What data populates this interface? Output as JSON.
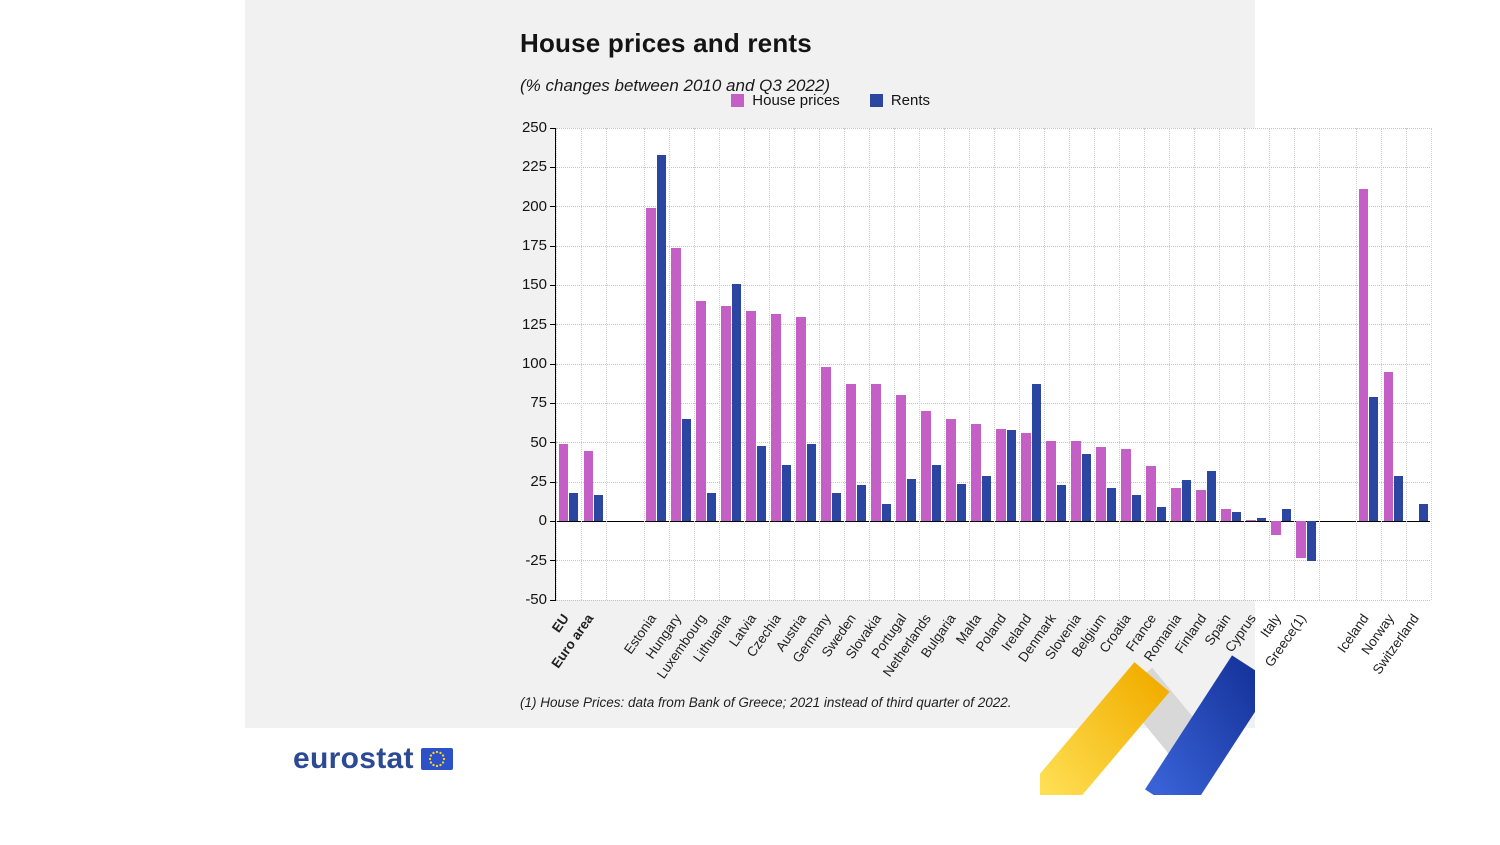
{
  "page": {
    "title": "House prices and rents",
    "subtitle": "(% changes between 2010 and Q3 2022)",
    "footnote": "(1) House Prices: data from Bank of Greece; 2021 instead of third quarter of 2022.",
    "brand": {
      "logo_text": "eurostat"
    }
  },
  "legend": [
    {
      "label": "House prices",
      "color": "#c45fc6"
    },
    {
      "label": "Rents",
      "color": "#2a46a0"
    }
  ],
  "chart_data": {
    "type": "bar",
    "title": "House prices and rents",
    "subtitle": "(% changes between 2010 and Q3 2022)",
    "unit": "% change between 2010 and Q3 2022",
    "ylim": [
      -50,
      250
    ],
    "yticks": [
      250,
      225,
      200,
      175,
      150,
      125,
      100,
      75,
      50,
      25,
      0,
      -25,
      -50
    ],
    "grid": true,
    "legend_position": "top-right",
    "series": [
      {
        "name": "House prices",
        "color": "#c45fc6"
      },
      {
        "name": "Rents",
        "color": "#2a46a0"
      }
    ],
    "groups": [
      {
        "name": "aggregates",
        "emphasis": true,
        "categories": [
          "EU",
          "Euro area"
        ],
        "house_prices": [
          49,
          45
        ],
        "rents": [
          18,
          17
        ]
      },
      {
        "name": "eu-member-states",
        "emphasis": false,
        "categories": [
          "Estonia",
          "Hungary",
          "Luxembourg",
          "Lithuania",
          "Latvia",
          "Czechia",
          "Austria",
          "Germany",
          "Sweden",
          "Slovakia",
          "Portugal",
          "Netherlands",
          "Bulgaria",
          "Malta",
          "Poland",
          "Ireland",
          "Denmark",
          "Slovenia",
          "Belgium",
          "Croatia",
          "France",
          "Romania",
          "Finland",
          "Spain",
          "Cyprus",
          "Italy",
          "Greece(1)"
        ],
        "house_prices": [
          199,
          174,
          140,
          137,
          134,
          132,
          130,
          98,
          87,
          87,
          80,
          70,
          65,
          62,
          59,
          56,
          51,
          51,
          47,
          46,
          35,
          21,
          20,
          8,
          1,
          -9,
          -23
        ],
        "rents": [
          233,
          65,
          18,
          151,
          48,
          36,
          49,
          18,
          23,
          11,
          27,
          36,
          24,
          29,
          58,
          87,
          23,
          43,
          21,
          17,
          9,
          26,
          32,
          6,
          2,
          8,
          -25
        ]
      },
      {
        "name": "efta",
        "emphasis": false,
        "categories": [
          "Iceland",
          "Norway",
          "Switzerland"
        ],
        "house_prices": [
          211,
          95,
          null
        ],
        "rents": [
          79,
          29,
          11
        ]
      }
    ]
  }
}
